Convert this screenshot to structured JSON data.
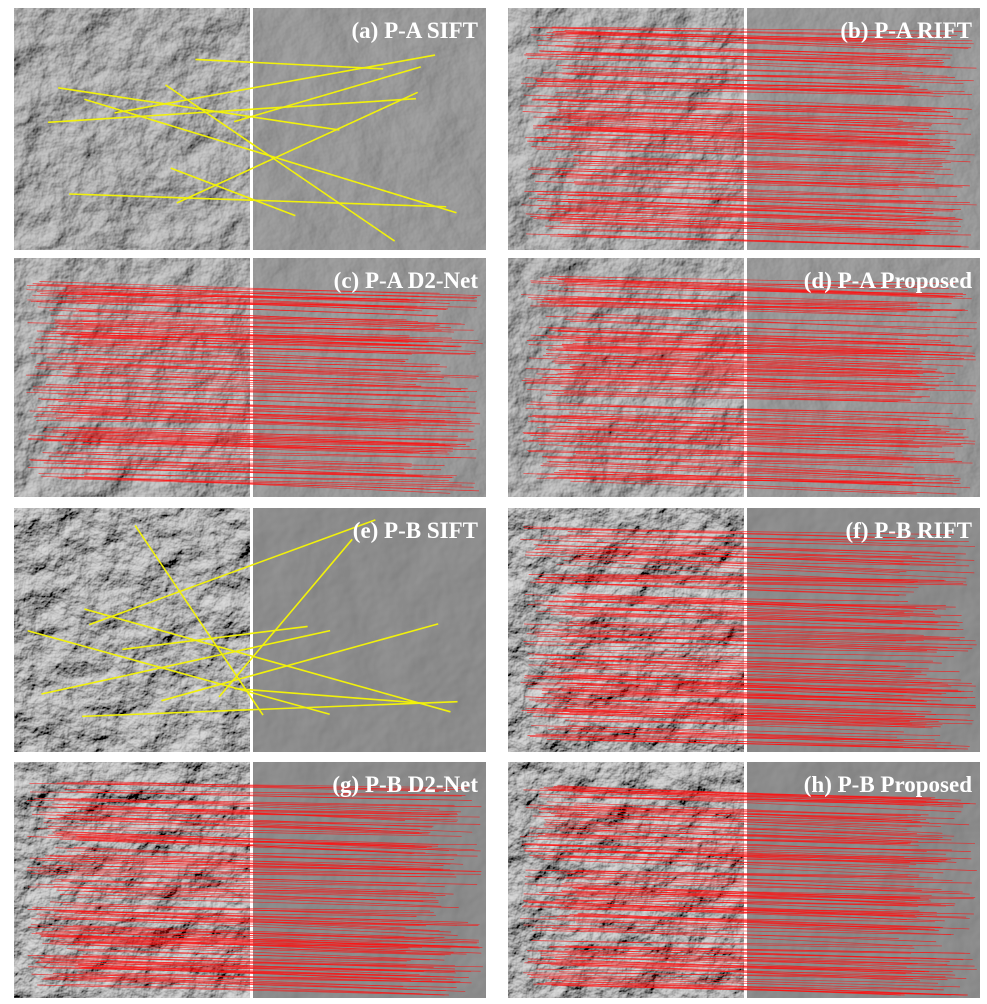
{
  "panels": [
    {
      "label": "(a) P-A SIFT"
    },
    {
      "label": "(b) P-A RIFT"
    },
    {
      "label": "(c) P-A D2-Net"
    },
    {
      "label": "(d) P-A Proposed"
    },
    {
      "label": "(e) P-B SIFT"
    },
    {
      "label": "(f) P-B RIFT"
    },
    {
      "label": "(g) P-B D2-Net"
    },
    {
      "label": "(h) P-B Proposed"
    }
  ]
}
